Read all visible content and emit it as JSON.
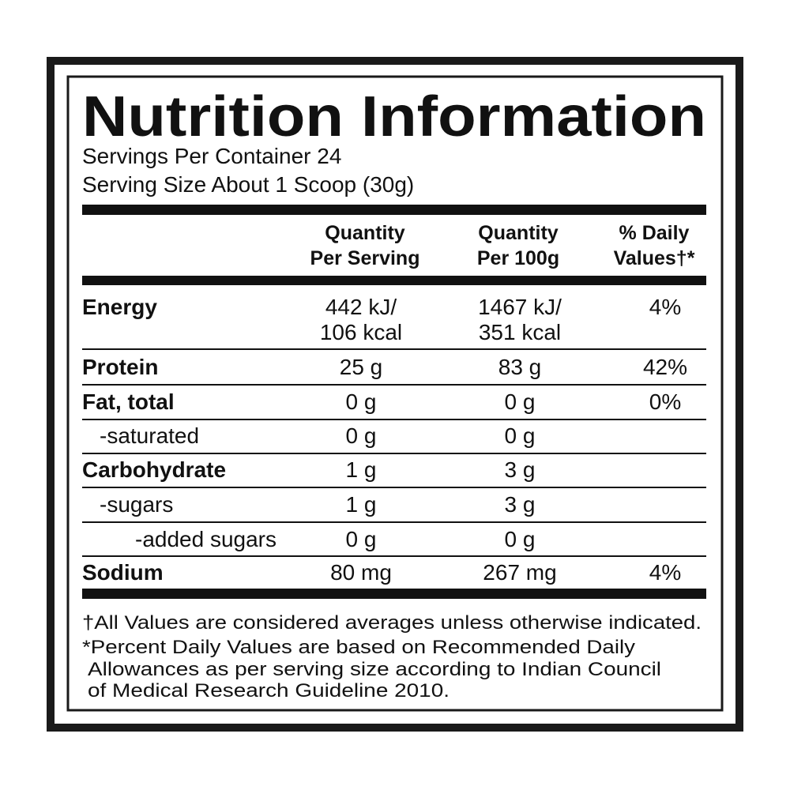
{
  "title": "Nutrition Information",
  "servings": [
    "Servings Per Container 24",
    "Serving Size About 1 Scoop (30g)"
  ],
  "table": {
    "headers": [
      [
        "Quantity",
        "Per Serving"
      ],
      [
        "Quantity",
        "Per 100g"
      ],
      [
        "% Daily",
        "Values†*"
      ]
    ],
    "rows": [
      [
        "Energy",
        [
          "442 kJ/",
          "106 kcal"
        ],
        [
          "1467 kJ/",
          "351 kcal"
        ],
        "4%"
      ],
      [
        "Protein",
        "25 g",
        "83 g",
        "42%"
      ],
      [
        "Fat, total",
        "0 g",
        "0 g",
        "0%"
      ],
      [
        "-saturated",
        "0 g",
        "0 g"
      ],
      [
        "Carbohydrate",
        "1 g",
        "3 g"
      ],
      [
        "-sugars",
        "1 g",
        "3 g"
      ],
      [
        "-added sugars",
        "0 g",
        "0 g"
      ],
      [
        "Sodium",
        "80 mg",
        "267 mg",
        "4%"
      ]
    ]
  },
  "footnotes": [
    "†All Values are considered averages unless otherwise indicated.",
    "*Percent Daily Values are based on Recommended Daily",
    "Allowances as per serving size according to Indian Council",
    "of Medical Research Guideline 2010."
  ]
}
